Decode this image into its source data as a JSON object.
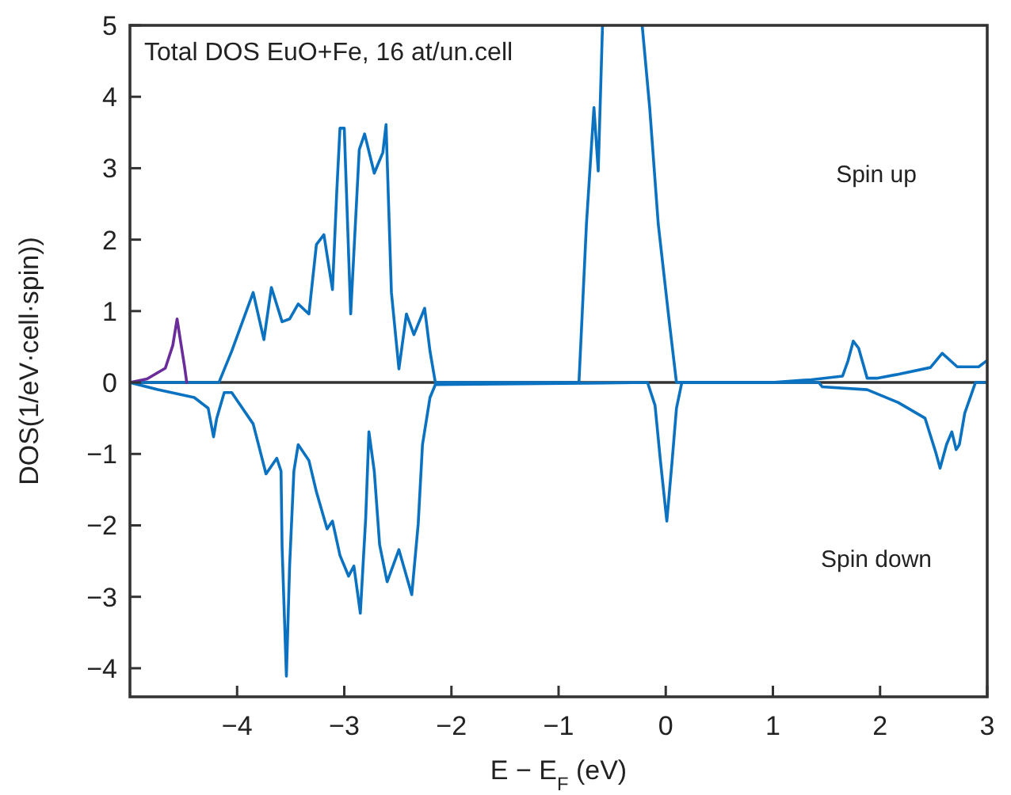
{
  "chart_data": {
    "type": "line",
    "title": "Total DOS EuO+Fe, 16 at/un.cell",
    "xlabel": "E − E$_{F}$ (eV)",
    "ylabel": "DOS(1/eV·cell·spin))",
    "annotations": [
      "Spin up",
      "Spin down"
    ],
    "xlim": [
      -5,
      3
    ],
    "xticks": [
      -4,
      -3,
      -2,
      -1,
      0,
      1,
      2,
      3
    ],
    "ylim": [
      -4.4,
      5
    ],
    "yticks": [
      -4,
      -3,
      -2,
      -1,
      0,
      1,
      2,
      3,
      4,
      5
    ],
    "ref_lines": [
      {
        "axis": "y",
        "value": 0,
        "color": "#333333"
      }
    ],
    "line_style": "solid",
    "series": [
      {
        "color": "#0a72c0",
        "x": [
          -5,
          -4.17,
          -4.05,
          -3.85,
          -3.75,
          -3.68,
          -3.58,
          -3.51,
          -3.43,
          -3.33,
          -3.26,
          -3.19,
          -3.11,
          -3.07,
          -3.04,
          -3.0,
          -2.94,
          -2.86,
          -2.81,
          -2.72,
          -2.64,
          -2.61,
          -2.56,
          -2.49,
          -2.42,
          -2.35,
          -2.25,
          -2.2,
          -2.15,
          -0.81,
          -0.74,
          -0.67,
          -0.63,
          -0.59,
          -0.4,
          -0.22,
          -0.15,
          -0.07,
          0.03,
          0.1,
          0.99,
          1.36,
          1.65,
          1.7,
          1.75,
          1.8,
          1.88,
          1.97,
          2.15,
          2.47,
          2.58,
          2.72,
          2.92,
          3.0
        ],
        "values": [
          0,
          0,
          0.44,
          1.26,
          0.6,
          1.33,
          0.85,
          0.89,
          1.1,
          0.96,
          1.93,
          2.07,
          1.3,
          2.67,
          3.56,
          3.56,
          0.96,
          3.26,
          3.48,
          2.93,
          3.22,
          3.61,
          1.26,
          0.19,
          0.96,
          0.67,
          1.04,
          0.44,
          0,
          0,
          2.22,
          3.85,
          2.96,
          5,
          null,
          5,
          3.85,
          2.22,
          0.89,
          0,
          0,
          0.04,
          0.09,
          0.3,
          0.58,
          0.48,
          0.06,
          0.06,
          0.11,
          0.21,
          0.41,
          0.22,
          0.22,
          0.31
        ]
      },
      {
        "color": "#0a72c0",
        "x": [
          -5,
          -4.74,
          -4.4,
          -4.27,
          -4.22,
          -4.19,
          -4.12,
          -4.05,
          -3.85,
          -3.73,
          -3.63,
          -3.59,
          -3.58,
          -3.54,
          -3.51,
          -3.47,
          -3.43,
          -3.33,
          -3.26,
          -3.16,
          -3.11,
          -3.04,
          -2.96,
          -2.91,
          -2.85,
          -2.8,
          -2.77,
          -2.72,
          -2.67,
          -2.6,
          -2.49,
          -2.37,
          -2.31,
          -2.27,
          -2.2,
          -2.15,
          -0.17,
          -0.1,
          -0.05,
          0.01,
          0.06,
          0.1,
          0.15,
          1.43,
          1.46,
          1.88,
          2.17,
          2.42,
          2.52,
          2.56,
          2.62,
          2.67,
          2.71,
          2.74,
          2.79,
          2.89,
          3.0
        ],
        "values": [
          0,
          -0.1,
          -0.21,
          -0.36,
          -0.76,
          -0.5,
          -0.14,
          -0.14,
          -0.58,
          -1.28,
          -1.06,
          -1.24,
          -2.31,
          -4.11,
          -2.57,
          -1.24,
          -0.87,
          -1.09,
          -1.53,
          -2.05,
          -1.94,
          -2.42,
          -2.71,
          -2.57,
          -3.23,
          -1.9,
          -0.69,
          -1.24,
          -2.27,
          -2.79,
          -2.34,
          -2.97,
          -1.98,
          -0.87,
          -0.21,
          -0.03,
          0,
          -0.32,
          -1.09,
          -1.94,
          -1.09,
          -0.36,
          0,
          0,
          -0.06,
          -0.1,
          -0.28,
          -0.5,
          -0.98,
          -1.2,
          -0.87,
          -0.69,
          -0.94,
          -0.87,
          -0.43,
          0,
          0
        ]
      },
      {
        "color": "#6a2c9a",
        "x": [
          -5,
          -4.84,
          -4.67,
          -4.6,
          -4.56,
          -4.53,
          -4.49,
          -4.47
        ],
        "values": [
          0,
          0.05,
          0.2,
          0.52,
          0.89,
          0.6,
          0.22,
          0
        ]
      }
    ]
  }
}
